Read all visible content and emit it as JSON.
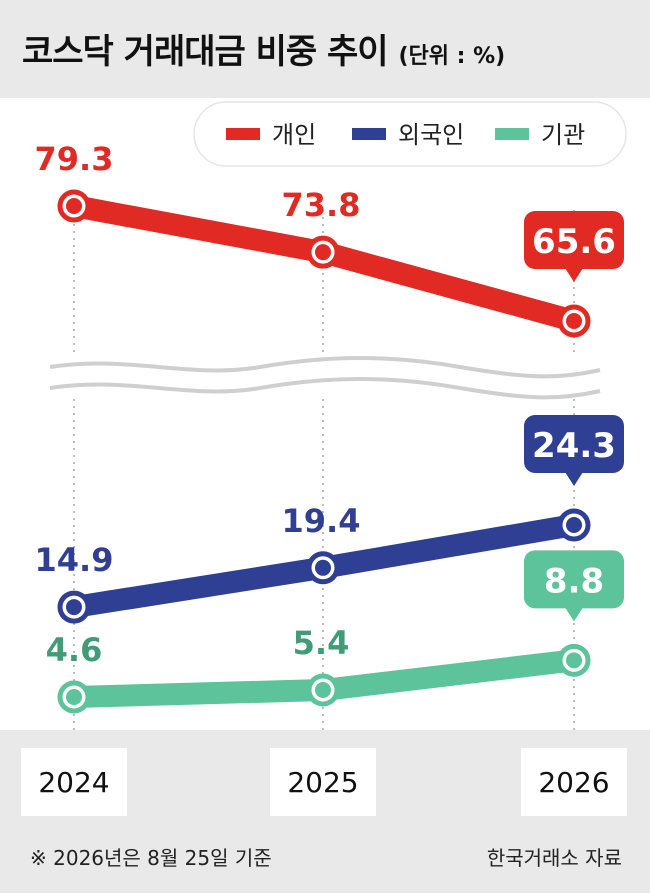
{
  "title": "코스닥 거래대금 비중 추이",
  "unit_label": "(단위 : %)",
  "footnote": "※ 2026년은 8월 25일 기준",
  "source": "한국거래소 자료",
  "colors": {
    "background": "#e9e9e9",
    "individual": "#e02a23",
    "foreign": "#2f3f93",
    "institution": "#5cc39b",
    "institution_label": "#3f9c76"
  },
  "chart_data": {
    "type": "line",
    "x": [
      "2024",
      "2025",
      "2026"
    ],
    "axis_break": true,
    "legend_position": "top-right",
    "series": [
      {
        "name": "개인",
        "values": [
          79.3,
          73.8,
          65.6
        ],
        "labels": [
          "79.3",
          "73.8",
          "65.6"
        ]
      },
      {
        "name": "외국인",
        "values": [
          14.9,
          19.4,
          24.3
        ],
        "labels": [
          "14.9",
          "19.4",
          "24.3"
        ]
      },
      {
        "name": "기관",
        "values": [
          4.6,
          5.4,
          8.8
        ],
        "labels": [
          "4.6",
          "5.4",
          "8.8"
        ]
      }
    ]
  }
}
